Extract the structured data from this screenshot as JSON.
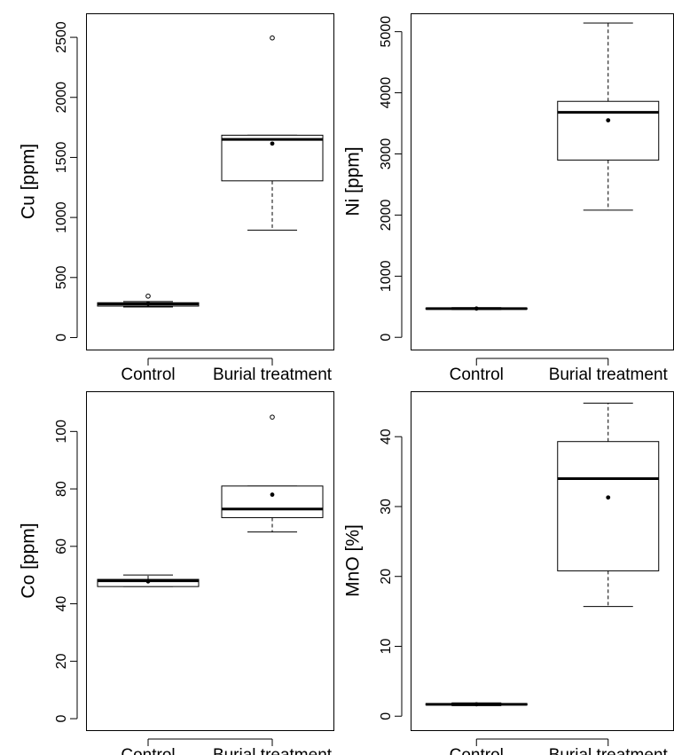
{
  "chart_data": [
    {
      "type": "boxplot",
      "ylabel": "Cu [ppm]",
      "categories": [
        "Control",
        "Burial treatment"
      ],
      "ylim": [
        -100,
        2700
      ],
      "yticks": [
        0,
        500,
        1000,
        1500,
        2000,
        2500
      ],
      "series": [
        {
          "whisker_low": 255,
          "q1": 262,
          "median": 280,
          "q3": 290,
          "whisker_high": 300,
          "mean": 283,
          "outliers": [
            345
          ]
        },
        {
          "whisker_low": 895,
          "q1": 1305,
          "median": 1650,
          "q3": 1685,
          "whisker_high": 1685,
          "mean": 1615,
          "outliers": [
            2495
          ]
        }
      ],
      "grid": false,
      "legend": "none"
    },
    {
      "type": "boxplot",
      "ylabel": "Ni [ppm]",
      "categories": [
        "Control",
        "Burial treatment"
      ],
      "ylim": [
        -200,
        5300
      ],
      "yticks": [
        0,
        1000,
        2000,
        3000,
        4000,
        5000
      ],
      "series": [
        {
          "whisker_low": 455,
          "q1": 462,
          "median": 470,
          "q3": 478,
          "whisker_high": 485,
          "mean": 470,
          "outliers": []
        },
        {
          "whisker_low": 2080,
          "q1": 2900,
          "median": 3680,
          "q3": 3860,
          "whisker_high": 5140,
          "mean": 3550,
          "outliers": []
        }
      ],
      "grid": false,
      "legend": "none"
    },
    {
      "type": "boxplot",
      "ylabel": "Co [ppm]",
      "categories": [
        "Control",
        "Burial treatment"
      ],
      "ylim": [
        -4,
        114
      ],
      "yticks": [
        0,
        20,
        40,
        60,
        80,
        100
      ],
      "series": [
        {
          "whisker_low": 46,
          "q1": 46,
          "median": 48,
          "q3": 48.5,
          "whisker_high": 50,
          "mean": 47.8,
          "outliers": []
        },
        {
          "whisker_low": 65,
          "q1": 70,
          "median": 73,
          "q3": 81,
          "whisker_high": 81,
          "mean": 78,
          "outliers": [
            105
          ]
        }
      ],
      "grid": false,
      "legend": "none"
    },
    {
      "type": "boxplot",
      "ylabel": "MnO [%]",
      "categories": [
        "Control",
        "Burial treatment"
      ],
      "ylim": [
        -2,
        46.5
      ],
      "yticks": [
        0,
        10,
        20,
        30,
        40
      ],
      "series": [
        {
          "whisker_low": 1.5,
          "q1": 1.6,
          "median": 1.7,
          "q3": 1.8,
          "whisker_high": 1.9,
          "mean": 1.7,
          "outliers": []
        },
        {
          "whisker_low": 15.7,
          "q1": 20.8,
          "median": 34,
          "q3": 39.3,
          "whisker_high": 44.8,
          "mean": 31.3,
          "outliers": []
        }
      ],
      "grid": false,
      "legend": "none"
    }
  ]
}
